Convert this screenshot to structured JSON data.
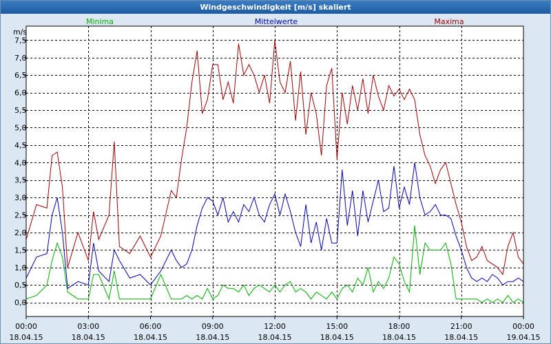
{
  "window": {
    "title": "Windgeschwindigkeit [m/s] skaliert"
  },
  "colors": {
    "minima": "#00b000",
    "mittelwerte": "#0000b0",
    "maxima": "#a00000",
    "plot_bg": "#ffffff",
    "grid": "#000000"
  },
  "chart_data": {
    "type": "line",
    "title": "Windgeschwindigkeit [m/s] skaliert",
    "ylabel": "m/s",
    "xlabel": "",
    "ylim": [
      -0.4,
      7.9
    ],
    "yticks": [
      0.0,
      0.5,
      1.0,
      1.5,
      2.0,
      2.5,
      3.0,
      3.5,
      4.0,
      4.5,
      5.0,
      5.5,
      6.0,
      6.5,
      7.0,
      7.5
    ],
    "ytick_labels": [
      "0,0",
      "0,5",
      "1,0",
      "1,5",
      "2,0",
      "2,5",
      "3,0",
      "3,5",
      "4,0",
      "4,5",
      "5,0",
      "5,5",
      "6,0",
      "6,5",
      "7,0",
      "7,5"
    ],
    "xlim": [
      0,
      24
    ],
    "xticks": [
      0,
      3,
      6,
      9,
      12,
      15,
      18,
      21,
      24
    ],
    "xtick_labels": [
      [
        "00:00",
        "18.04.15"
      ],
      [
        "03:00",
        "18.04.15"
      ],
      [
        "06:00",
        "18.04.15"
      ],
      [
        "09:00",
        "18.04.15"
      ],
      [
        "12:00",
        "18.04.15"
      ],
      [
        "15:00",
        "18.04.15"
      ],
      [
        "18:00",
        "18.04.15"
      ],
      [
        "21:00",
        "18.04.15"
      ],
      [
        "00:00",
        "19.04.15"
      ]
    ],
    "grid": true,
    "legend": [
      "Minima",
      "Mittelwerte",
      "Maxima"
    ],
    "x": [
      0.0,
      0.5,
      1.0,
      1.25,
      1.5,
      1.75,
      2.0,
      2.5,
      3.0,
      3.25,
      3.5,
      4.0,
      4.25,
      4.5,
      5.0,
      5.5,
      6.0,
      6.5,
      7.0,
      7.25,
      7.5,
      7.75,
      8.0,
      8.25,
      8.5,
      8.75,
      9.0,
      9.25,
      9.5,
      9.75,
      10.0,
      10.25,
      10.5,
      10.75,
      11.0,
      11.25,
      11.5,
      11.75,
      12.0,
      12.25,
      12.5,
      12.75,
      13.0,
      13.25,
      13.5,
      13.75,
      14.0,
      14.25,
      14.5,
      14.75,
      15.0,
      15.25,
      15.5,
      15.75,
      16.0,
      16.25,
      16.5,
      16.75,
      17.0,
      17.25,
      17.5,
      17.75,
      18.0,
      18.25,
      18.5,
      18.75,
      19.0,
      19.25,
      19.5,
      19.75,
      20.0,
      20.25,
      20.5,
      20.75,
      21.0,
      21.25,
      21.5,
      21.75,
      22.0,
      22.25,
      22.5,
      22.75,
      23.0,
      23.25,
      23.5,
      23.75,
      24.0
    ],
    "series": [
      {
        "name": "Minima",
        "values": [
          0.1,
          0.2,
          0.5,
          1.2,
          1.7,
          1.3,
          0.3,
          0.1,
          0.1,
          0.8,
          0.8,
          0.1,
          0.9,
          0.1,
          0.1,
          0.1,
          0.1,
          0.8,
          0.1,
          0.1,
          0.1,
          0.2,
          0.1,
          0.2,
          0.1,
          0.4,
          0.1,
          0.2,
          0.5,
          0.4,
          0.4,
          0.3,
          0.5,
          0.2,
          0.4,
          0.5,
          0.4,
          0.3,
          0.5,
          0.3,
          0.5,
          0.6,
          0.3,
          0.4,
          0.3,
          0.1,
          0.3,
          0.2,
          0.1,
          0.3,
          0.1,
          0.4,
          0.5,
          0.3,
          0.7,
          0.5,
          1.0,
          0.3,
          0.6,
          0.4,
          0.7,
          1.3,
          1.1,
          0.6,
          0.3,
          2.2,
          0.8,
          1.7,
          1.5,
          1.5,
          1.5,
          1.7,
          1.1,
          0.1,
          0.1,
          0.1,
          0.1,
          0.1,
          0.0,
          0.1,
          0.0,
          0.1,
          0.0,
          0.2,
          0.0,
          0.1,
          0.0
        ]
      },
      {
        "name": "Mittelwerte",
        "values": [
          0.7,
          1.3,
          1.4,
          2.5,
          3.0,
          2.0,
          0.4,
          0.6,
          0.5,
          1.7,
          0.9,
          0.6,
          1.5,
          1.2,
          0.7,
          0.8,
          0.5,
          0.9,
          1.5,
          1.2,
          1.0,
          1.1,
          1.5,
          2.2,
          2.7,
          3.0,
          2.9,
          2.5,
          3.0,
          2.3,
          2.6,
          2.3,
          2.8,
          2.6,
          3.0,
          2.5,
          2.3,
          2.8,
          3.1,
          2.5,
          3.1,
          2.6,
          2.0,
          1.6,
          2.8,
          1.7,
          2.3,
          1.5,
          2.4,
          1.7,
          1.7,
          3.8,
          2.2,
          3.2,
          1.9,
          3.2,
          2.3,
          2.9,
          3.5,
          2.6,
          2.7,
          3.9,
          2.7,
          3.3,
          2.8,
          4.0,
          3.0,
          2.5,
          2.6,
          2.8,
          2.5,
          2.5,
          2.4,
          1.9,
          1.5,
          1.0,
          0.7,
          0.6,
          0.7,
          0.6,
          0.8,
          0.7,
          0.5,
          0.6,
          0.6,
          0.7,
          0.6
        ]
      },
      {
        "name": "Maxima",
        "values": [
          1.8,
          2.8,
          2.7,
          4.2,
          4.3,
          3.3,
          1.0,
          2.0,
          1.2,
          2.6,
          1.8,
          2.5,
          4.6,
          1.6,
          1.4,
          1.9,
          1.3,
          1.9,
          3.2,
          3.0,
          4.1,
          5.0,
          6.3,
          7.2,
          5.4,
          5.8,
          6.8,
          6.8,
          5.8,
          6.3,
          5.7,
          7.4,
          6.5,
          6.8,
          6.5,
          6.0,
          6.5,
          5.7,
          7.5,
          6.3,
          6.0,
          6.9,
          5.2,
          6.6,
          4.8,
          6.0,
          5.4,
          4.2,
          6.2,
          6.7,
          4.1,
          6.0,
          5.1,
          6.2,
          5.5,
          6.4,
          5.4,
          6.5,
          5.9,
          5.5,
          6.2,
          5.9,
          6.1,
          5.8,
          6.1,
          5.8,
          4.8,
          4.2,
          3.9,
          3.4,
          3.8,
          4.0,
          3.4,
          2.8,
          2.3,
          1.6,
          1.2,
          1.3,
          1.6,
          1.2,
          1.1,
          1.0,
          0.8,
          1.6,
          2.0,
          1.3,
          1.1
        ]
      }
    ]
  }
}
